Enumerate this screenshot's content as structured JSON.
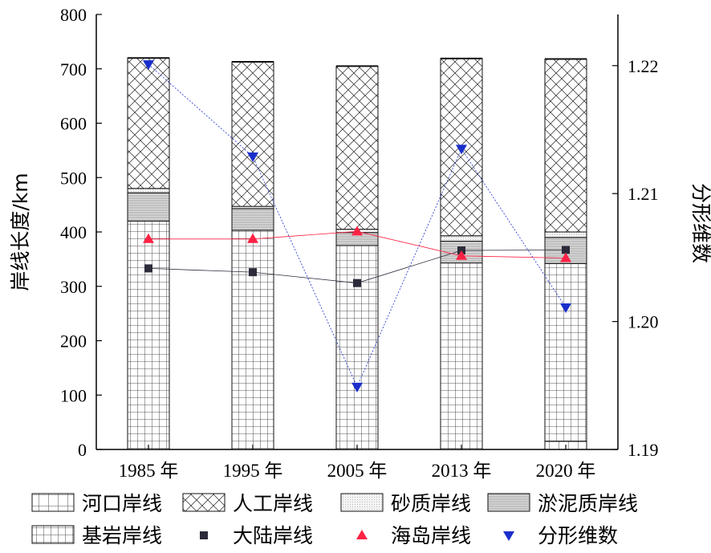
{
  "chart_data": {
    "type": "bar",
    "subtype": "stacked-bar-with-line-overlay",
    "categories": [
      "1985 年",
      "1995 年",
      "2005 年",
      "2013 年",
      "2020 年"
    ],
    "ylabel": "岸线长度/km",
    "ylim": [
      0,
      800
    ],
    "yticks": [
      "0",
      "100",
      "200",
      "300",
      "400",
      "500",
      "600",
      "700",
      "800"
    ],
    "y2label": "分形维数",
    "y2lim": [
      1.19,
      1.224
    ],
    "y2ticks": [
      "1.19",
      "1.20",
      "1.21",
      "1.22"
    ],
    "bar_series": [
      {
        "name": "河口岸线",
        "pattern": "grid-large",
        "values": [
          0,
          0,
          0,
          0,
          15
        ]
      },
      {
        "name": "基岩岸线",
        "pattern": "grid-small",
        "values": [
          420,
          403,
          375,
          343,
          327
        ]
      },
      {
        "name": "淤泥质岸线",
        "pattern": "dense-lines",
        "values": [
          52,
          40,
          24,
          40,
          48
        ]
      },
      {
        "name": "砂质岸线",
        "pattern": "dots",
        "values": [
          8,
          4,
          6,
          10,
          10
        ]
      },
      {
        "name": "人工岸线",
        "pattern": "crosshatch",
        "values": [
          240,
          266,
          300,
          326,
          318
        ]
      }
    ],
    "line_series": [
      {
        "name": "大陆岸线",
        "axis": "left",
        "marker": "square",
        "color": "#2b2b3a",
        "values": [
          333,
          326,
          306,
          366,
          367
        ]
      },
      {
        "name": "海岛岸线",
        "axis": "left",
        "marker": "triangle-up",
        "color": "#ff2244",
        "values": [
          387,
          387,
          401,
          356,
          352
        ]
      },
      {
        "name": "分形维数",
        "axis": "right",
        "marker": "triangle-down",
        "color": "#1a2ecc",
        "values": [
          1.2201,
          1.2129,
          1.1949,
          1.2135,
          1.2011
        ]
      }
    ],
    "legend": {
      "placement": "bottom",
      "items": [
        "河口岸线",
        "人工岸线",
        "砂质岸线",
        "淤泥质岸线",
        "基岩岸线",
        "大陆岸线",
        "海岛岸线",
        "分形维数"
      ]
    },
    "grid": false
  }
}
